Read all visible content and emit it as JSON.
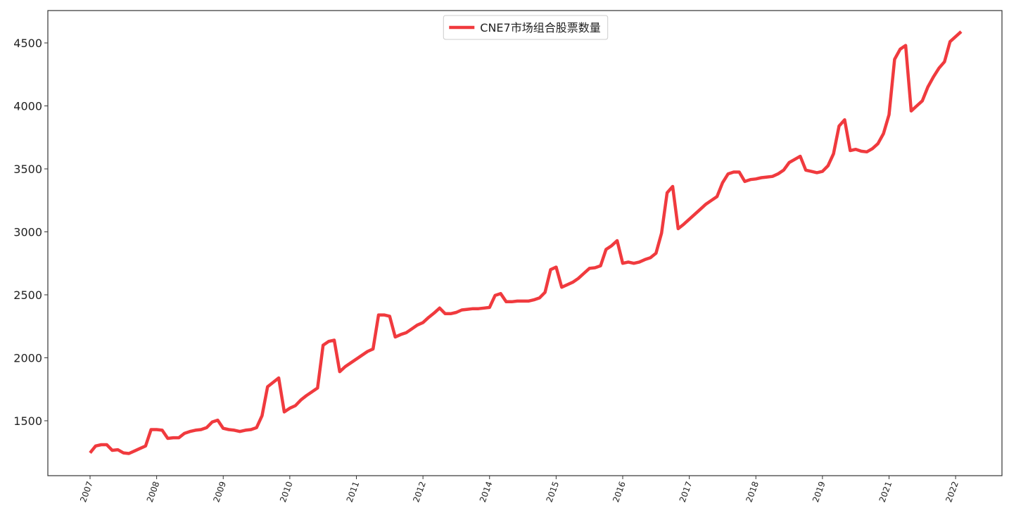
{
  "chart_data": {
    "type": "line",
    "categories": [
      "2007",
      null,
      null,
      null,
      null,
      null,
      null,
      null,
      null,
      null,
      null,
      null,
      "2008",
      null,
      null,
      null,
      null,
      null,
      null,
      null,
      null,
      null,
      null,
      null,
      "2009",
      null,
      null,
      null,
      null,
      null,
      null,
      null,
      null,
      null,
      null,
      null,
      "2010",
      null,
      null,
      null,
      null,
      null,
      null,
      null,
      null,
      null,
      null,
      null,
      "2011",
      null,
      null,
      null,
      null,
      null,
      null,
      null,
      null,
      null,
      null,
      null,
      "2012",
      null,
      null,
      null,
      null,
      null,
      null,
      null,
      null,
      null,
      null,
      null,
      "2014",
      null,
      null,
      null,
      null,
      null,
      null,
      null,
      null,
      null,
      null,
      null,
      "2015",
      null,
      null,
      null,
      null,
      null,
      null,
      null,
      null,
      null,
      null,
      null,
      "2016",
      null,
      null,
      null,
      null,
      null,
      null,
      null,
      null,
      null,
      null,
      null,
      "2017",
      null,
      null,
      null,
      null,
      null,
      null,
      null,
      null,
      null,
      null,
      null,
      "2018",
      null,
      null,
      null,
      null,
      null,
      null,
      null,
      null,
      null,
      null,
      null,
      "2019",
      null,
      null,
      null,
      null,
      null,
      null,
      null,
      null,
      null,
      null,
      null,
      "2021",
      null,
      null,
      null,
      null,
      null,
      null,
      null,
      null,
      null,
      null,
      null,
      "2022",
      null
    ],
    "series": [
      {
        "name": "CNE7市场组合股票数量",
        "color": "#f03a3e",
        "values": [
          1245,
          1300,
          1310,
          1310,
          1265,
          1270,
          1245,
          1240,
          1260,
          1280,
          1300,
          1430,
          1430,
          1425,
          1360,
          1365,
          1365,
          1400,
          1415,
          1425,
          1430,
          1445,
          1490,
          1505,
          1440,
          1430,
          1425,
          1415,
          1425,
          1430,
          1445,
          1540,
          1770,
          1805,
          1840,
          1570,
          1600,
          1620,
          1665,
          1700,
          1730,
          1760,
          2100,
          2130,
          2140,
          1890,
          1930,
          1960,
          1990,
          2020,
          2050,
          2070,
          2340,
          2340,
          2330,
          2165,
          2185,
          2200,
          2230,
          2260,
          2280,
          2320,
          2355,
          2395,
          2350,
          2350,
          2360,
          2380,
          2385,
          2390,
          2390,
          2395,
          2400,
          2495,
          2510,
          2445,
          2445,
          2450,
          2450,
          2450,
          2460,
          2475,
          2520,
          2700,
          2720,
          2560,
          2580,
          2600,
          2630,
          2670,
          2710,
          2715,
          2730,
          2860,
          2890,
          2930,
          2750,
          2760,
          2750,
          2760,
          2780,
          2795,
          2830,
          2990,
          3310,
          3360,
          3025,
          3060,
          3100,
          3140,
          3180,
          3220,
          3250,
          3280,
          3390,
          3460,
          3475,
          3475,
          3400,
          3415,
          3420,
          3430,
          3435,
          3440,
          3460,
          3490,
          3550,
          3575,
          3600,
          3490,
          3480,
          3470,
          3480,
          3525,
          3620,
          3840,
          3890,
          3645,
          3655,
          3640,
          3635,
          3660,
          3700,
          3780,
          3930,
          4370,
          4450,
          4480,
          3960,
          4000,
          4040,
          4150,
          4230,
          4300,
          4350,
          4510,
          4550,
          4590
        ]
      }
    ],
    "ylim": [
      1064,
      4757
    ],
    "yticks": [
      1500,
      2000,
      2500,
      3000,
      3500,
      4000,
      4500
    ],
    "grid": false,
    "legend": "upper center"
  }
}
